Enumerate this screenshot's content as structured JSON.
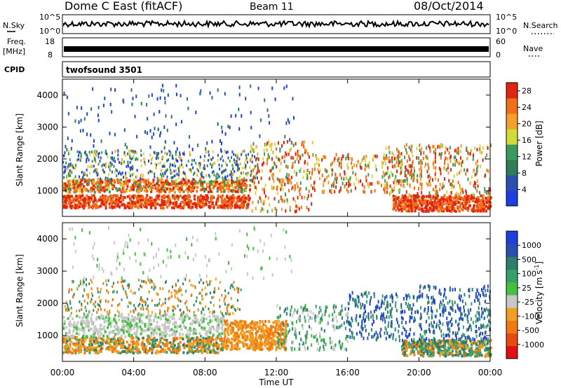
{
  "header": {
    "station": "Dome C East (fitACF)",
    "beam": "Beam 11",
    "date": "08/Oct/2014"
  },
  "strips": {
    "nsky_label": "N.Sky",
    "nsearch_label": "N.Search",
    "nave_label": "Nave",
    "freq_label": "Freq.",
    "freq_unit": "[MHz]",
    "cpid_label": "CPID",
    "cpid_value": "twofsound 3501",
    "noise_left_ticks": [
      "10^5",
      "10^0"
    ],
    "noise_right_ticks": [
      "10^5",
      "10^0"
    ],
    "freq_left_ticks": [
      "18",
      "8"
    ],
    "freq_right_ticks": [
      "60",
      "0"
    ]
  },
  "colors": {
    "power_scale": [
      "#1d3fe0",
      "#2b4fb0",
      "#2e7d55",
      "#3a9a5e",
      "#d4d93a",
      "#f5a02a",
      "#f07018",
      "#e02510"
    ],
    "velocity_scale": [
      "#1d3fe0",
      "#2b4fb0",
      "#2e7d6a",
      "#3aa06a",
      "#45c040",
      "#c8c8c8",
      "#f0a020",
      "#f07a10",
      "#e84a10",
      "#e01010"
    ]
  },
  "chart_data": [
    {
      "type": "heatmap",
      "title": "",
      "xlabel": "",
      "ylabel": "Slant Range [km]",
      "x_ticks": [
        "00:00",
        "04:00",
        "08:00",
        "12:00",
        "16:00",
        "20:00",
        "00:00"
      ],
      "y_ticks": [
        "1000",
        "2000",
        "3000",
        "4000"
      ],
      "xlim": [
        0,
        24
      ],
      "ylim": [
        200,
        4500
      ],
      "colorbar": {
        "label": "Power [dB]",
        "ticks": [
          "4",
          "8",
          "12",
          "16",
          "20",
          "24",
          "28"
        ],
        "range": [
          0,
          30
        ]
      }
    },
    {
      "type": "heatmap",
      "title": "",
      "xlabel": "Time UT",
      "ylabel": "Slant Range [km]",
      "x_ticks": [
        "00:00",
        "04:00",
        "08:00",
        "12:00",
        "16:00",
        "20:00",
        "00:00"
      ],
      "y_ticks": [
        "1000",
        "2000",
        "3000",
        "4000"
      ],
      "xlim": [
        0,
        24
      ],
      "ylim": [
        200,
        4500
      ],
      "colorbar": {
        "label": "Velocity [m s",
        "label_superscript": "-1",
        "label_close": "]",
        "ticks": [
          "1000",
          "500",
          "100",
          "25",
          "-25",
          "-100",
          "-500",
          "-1000"
        ]
      }
    }
  ]
}
